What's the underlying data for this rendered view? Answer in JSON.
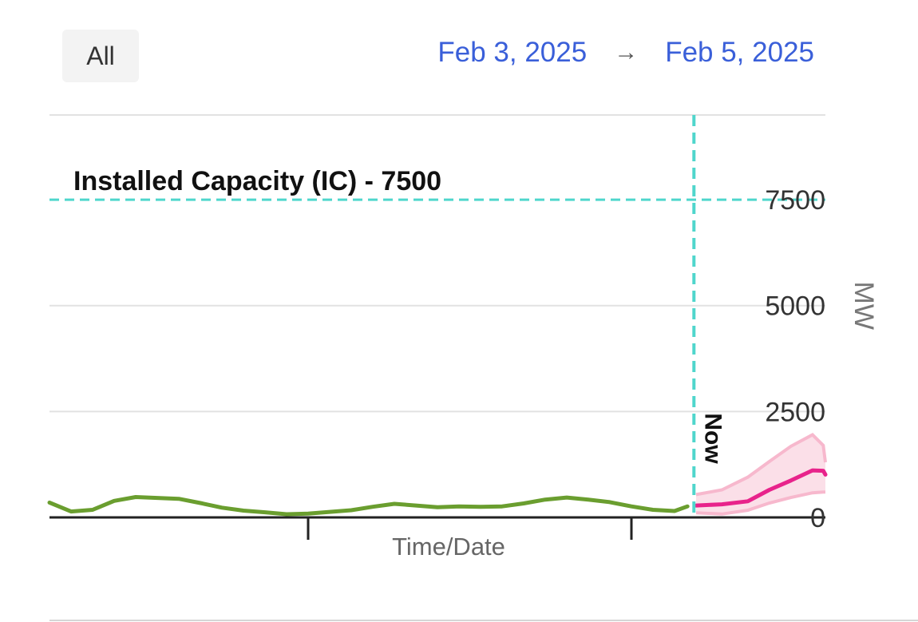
{
  "filter": {
    "all_label": "All"
  },
  "date_range": {
    "start": "Feb 3, 2025",
    "arrow": "→",
    "end": "Feb 5, 2025"
  },
  "colors": {
    "actual": "#6a9e2f",
    "forecast": "#e8238b",
    "forecast_band": "#f7b8cd",
    "capacity_line": "#4fd6cc",
    "now_line": "#4fd6cc",
    "grid": "#e2e2e2",
    "axis": "#222222",
    "tick_text": "#333333",
    "axis_title": "#666666",
    "date_link": "#3a5fd9"
  },
  "chart_data": {
    "type": "line",
    "xlabel": "Time/Date",
    "ylabel": "MW",
    "ylim": [
      0,
      9500
    ],
    "y_ticks": [
      0,
      2500,
      5000,
      7500
    ],
    "y_tick_labels": [
      "0",
      "2500",
      "5000",
      "7500"
    ],
    "x_range_hours": [
      0,
      36
    ],
    "x_ticks_hours": [
      12,
      27
    ],
    "grid": true,
    "capacity": {
      "label": "Installed Capacity (IC) - 7500",
      "value": 7500
    },
    "now": {
      "label": "Now",
      "hour": 29.9
    },
    "series": [
      {
        "style": "actual",
        "points": [
          [
            0,
            350
          ],
          [
            1.0,
            140
          ],
          [
            2.0,
            180
          ],
          [
            3.0,
            390
          ],
          [
            4.0,
            480
          ],
          [
            5.0,
            460
          ],
          [
            6.0,
            440
          ],
          [
            7.0,
            340
          ],
          [
            8.0,
            230
          ],
          [
            9.0,
            160
          ],
          [
            10.0,
            120
          ],
          [
            11.0,
            75
          ],
          [
            12.0,
            90
          ],
          [
            13.0,
            130
          ],
          [
            14.0,
            170
          ],
          [
            15.0,
            250
          ],
          [
            16.0,
            320
          ],
          [
            17.0,
            280
          ],
          [
            18.0,
            240
          ],
          [
            19.0,
            260
          ],
          [
            20.0,
            250
          ],
          [
            21.0,
            260
          ],
          [
            22.0,
            330
          ],
          [
            23.0,
            420
          ],
          [
            24.0,
            470
          ],
          [
            25.0,
            420
          ],
          [
            26.0,
            360
          ],
          [
            27.0,
            260
          ],
          [
            28.0,
            180
          ],
          [
            29.0,
            150
          ],
          [
            29.6,
            260
          ]
        ]
      },
      {
        "style": "forecast",
        "points": [
          [
            30.0,
            280
          ],
          [
            31.2,
            310
          ],
          [
            32.4,
            380
          ],
          [
            33.4,
            650
          ],
          [
            34.4,
            870
          ],
          [
            35.4,
            1110
          ],
          [
            35.9,
            1100
          ],
          [
            36.0,
            1010
          ]
        ],
        "band_upper": [
          [
            30.0,
            540
          ],
          [
            31.2,
            650
          ],
          [
            32.4,
            950
          ],
          [
            33.4,
            1320
          ],
          [
            34.4,
            1680
          ],
          [
            35.4,
            1950
          ],
          [
            35.9,
            1700
          ],
          [
            36.0,
            1300
          ]
        ],
        "band_lower": [
          [
            30.0,
            110
          ],
          [
            31.2,
            80
          ],
          [
            32.4,
            170
          ],
          [
            33.4,
            340
          ],
          [
            34.4,
            470
          ],
          [
            35.4,
            580
          ],
          [
            35.9,
            600
          ],
          [
            36.0,
            600
          ]
        ]
      }
    ]
  }
}
